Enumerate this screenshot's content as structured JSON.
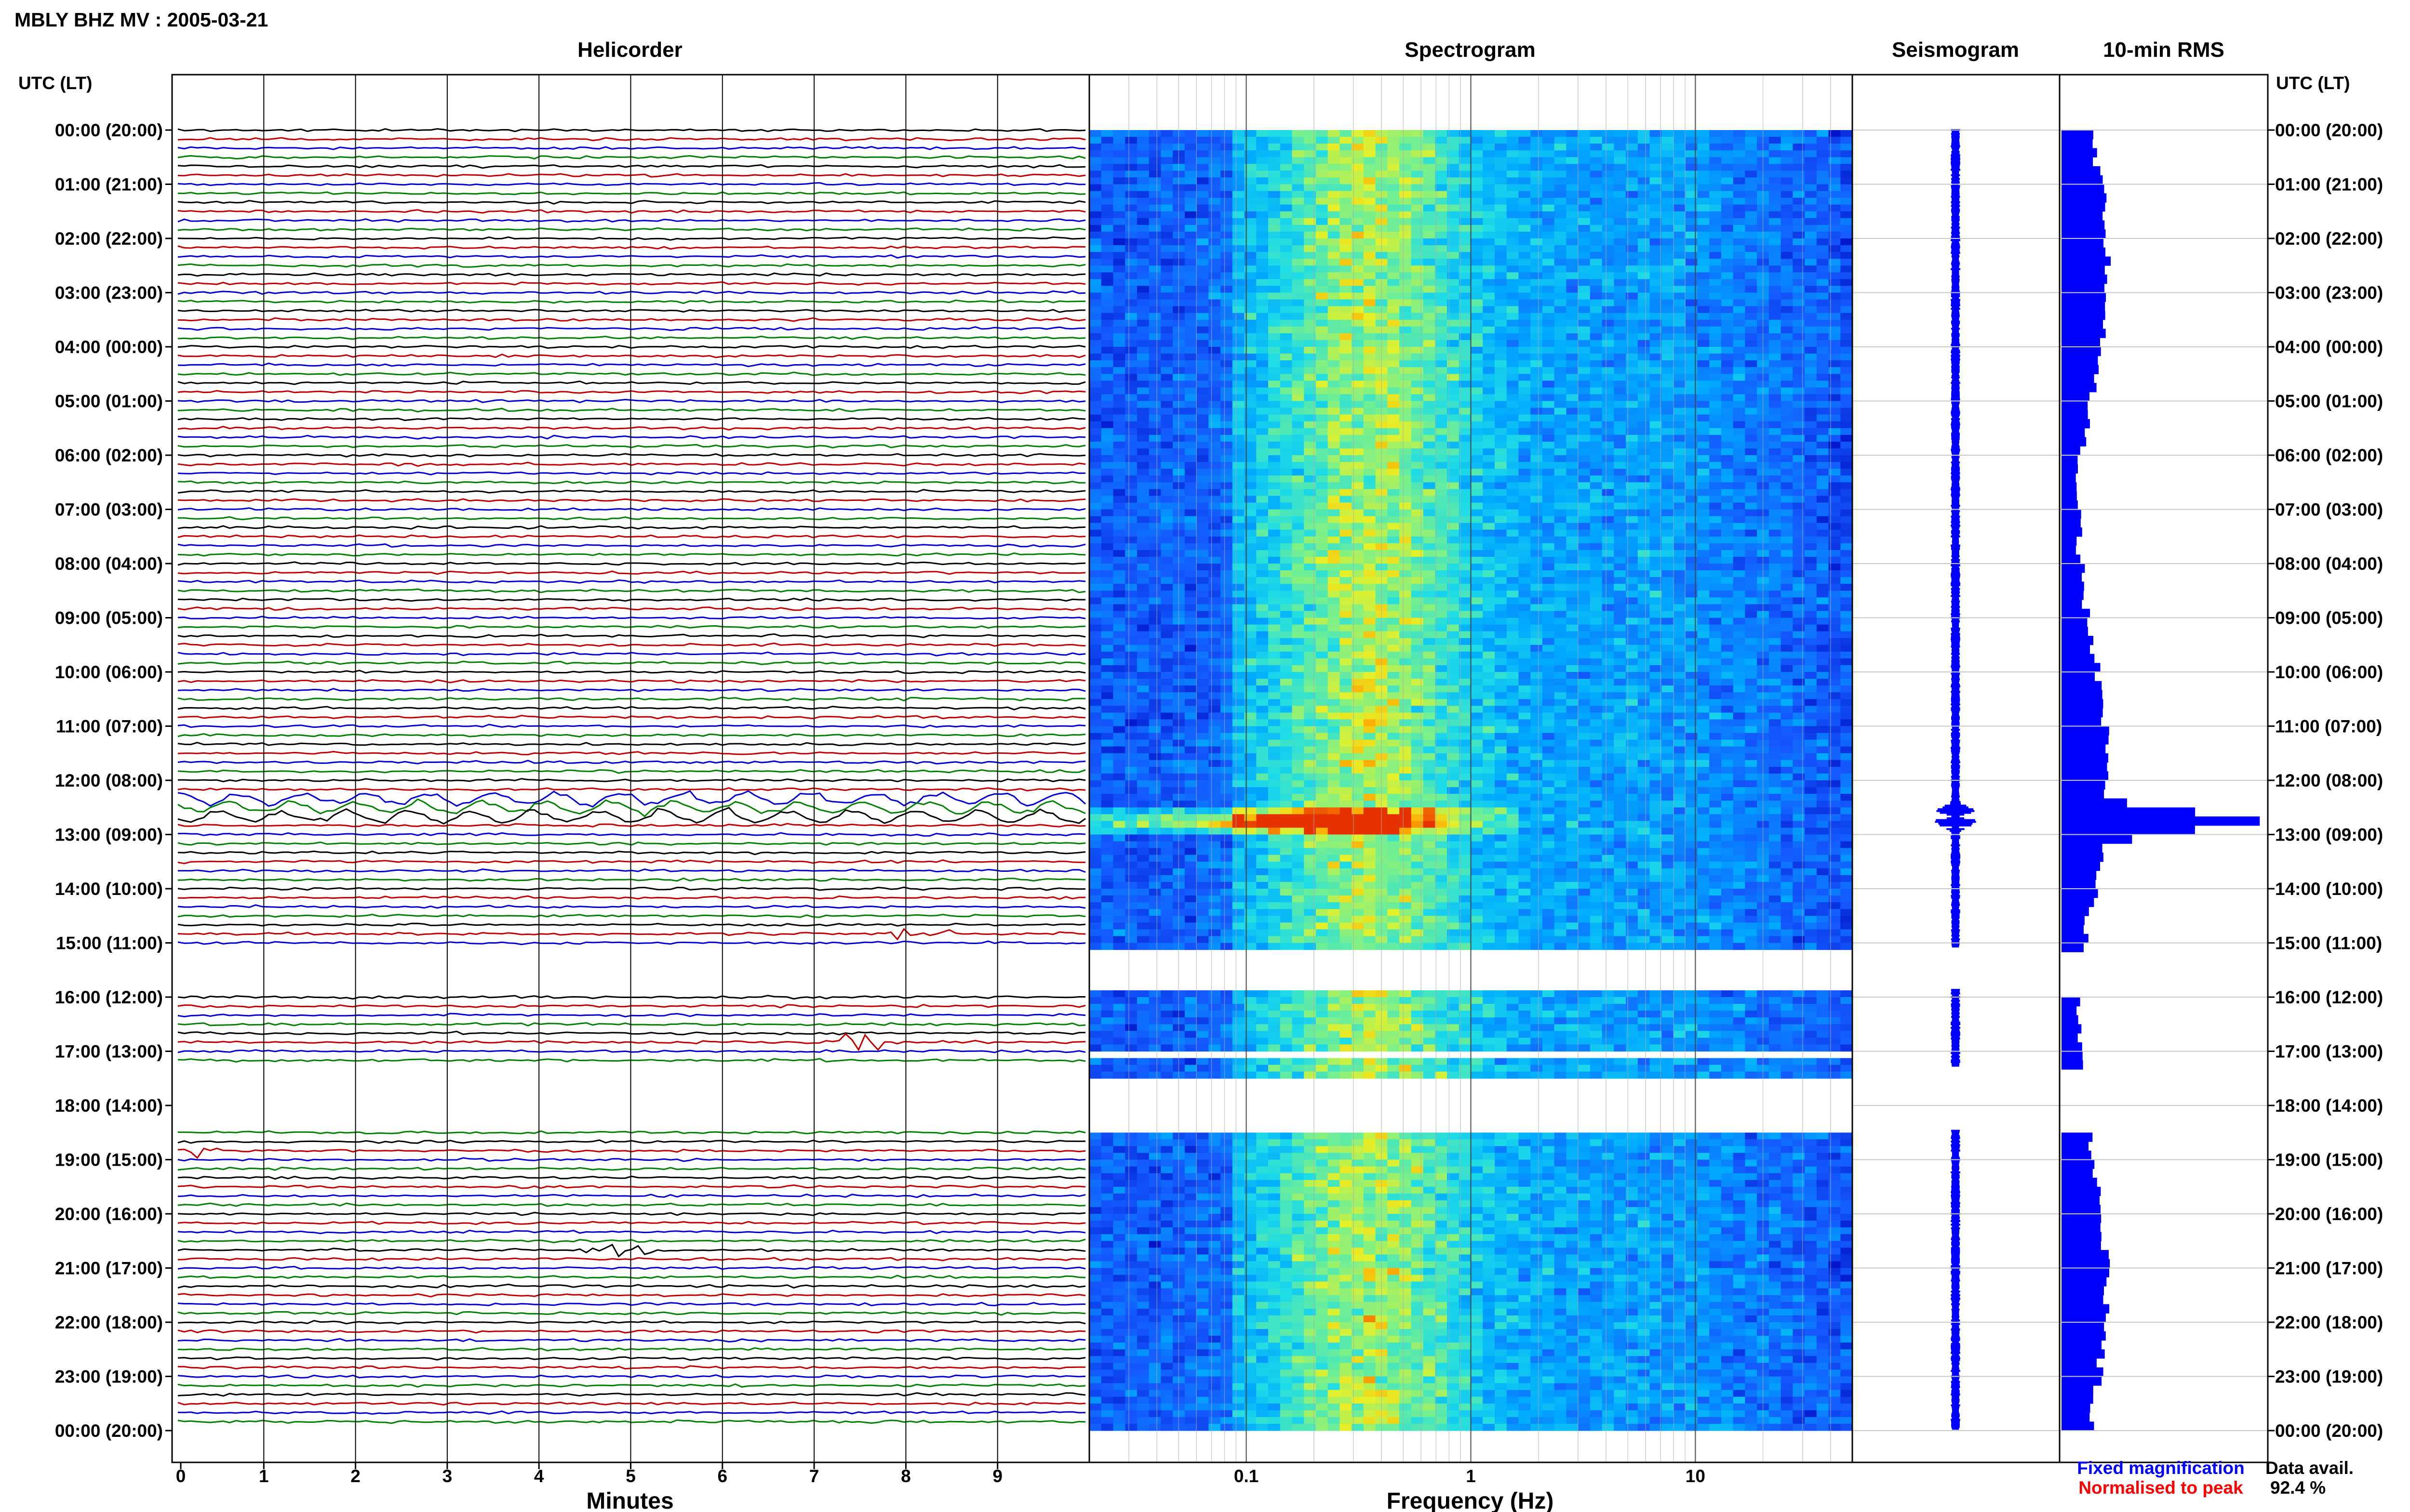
{
  "chart_data": [
    {
      "type": "line",
      "panel": "helicorder",
      "title": "MBLY BHZ MV : 2005-03-21",
      "heading": "Helicorder",
      "xlabel": "Minutes",
      "x_ticks": [
        "0",
        "1",
        "2",
        "3",
        "4",
        "5",
        "6",
        "7",
        "8",
        "9"
      ],
      "xlim": [
        0,
        10
      ],
      "ylabel_left": "UTC (LT)",
      "ylabel_right": "UTC (LT)",
      "time_labels": [
        "00:00 (20:00)",
        "01:00 (21:00)",
        "02:00 (22:00)",
        "03:00 (23:00)",
        "04:00 (00:00)",
        "05:00 (01:00)",
        "06:00 (02:00)",
        "07:00 (03:00)",
        "08:00 (04:00)",
        "09:00 (05:00)",
        "10:00 (06:00)",
        "11:00 (07:00)",
        "12:00 (08:00)",
        "13:00 (09:00)",
        "14:00 (10:00)",
        "15:00 (11:00)",
        "16:00 (12:00)",
        "17:00 (13:00)",
        "18:00 (14:00)",
        "19:00 (15:00)",
        "20:00 (16:00)",
        "21:00 (17:00)",
        "22:00 (18:00)",
        "23:00 (19:00)",
        "00:00 (20:00)"
      ],
      "trace_interval_minutes": 10,
      "trace_colors": [
        "#000000",
        "#c00000",
        "#0000d0",
        "#008000"
      ],
      "gaps_hours": [
        [
          15.1,
          15.85
        ],
        [
          17.3,
          18.45
        ]
      ],
      "events": [
        {
          "hour": 12.5,
          "minute_start": 0,
          "minute_end": 10,
          "note": "large"
        },
        {
          "hour": 14.83,
          "minute": 8.2
        },
        {
          "hour": 16.83,
          "minute": 7.5
        },
        {
          "hour": 18.83,
          "minute": 0.1
        },
        {
          "hour": 20.67,
          "minute": 4.9
        }
      ]
    },
    {
      "type": "heatmap",
      "panel": "spectrogram",
      "heading": "Spectrogram",
      "xlabel": "Frequency (Hz)",
      "x_scale": "log",
      "xlim": [
        0.02,
        50
      ],
      "x_ticks": [
        "0.1",
        "1",
        "10"
      ],
      "hot_hour": 12.7,
      "gaps_hours": [
        [
          15.1,
          15.85
        ],
        [
          16.95,
          17.1
        ],
        [
          17.55,
          18.45
        ]
      ]
    },
    {
      "type": "line",
      "panel": "seismogram",
      "heading": "Seismogram",
      "legend": [
        "Fixed magnification",
        "Normalised to peak"
      ],
      "legend_colors": [
        "#0000ff",
        "#ff0000"
      ]
    },
    {
      "type": "bar",
      "panel": "rms",
      "heading": "10-min RMS",
      "bar_color": "#0000ff",
      "orientation": "horizontal",
      "interval_minutes": 10,
      "peak_hour": 12.67,
      "data_availability_label": "Data avail.",
      "data_availability_value": "92.4 %"
    }
  ],
  "colors": {
    "black": "#000000",
    "red": "#c00000",
    "blue": "#0000d0",
    "green": "#008000",
    "rms": "#0000ff"
  }
}
